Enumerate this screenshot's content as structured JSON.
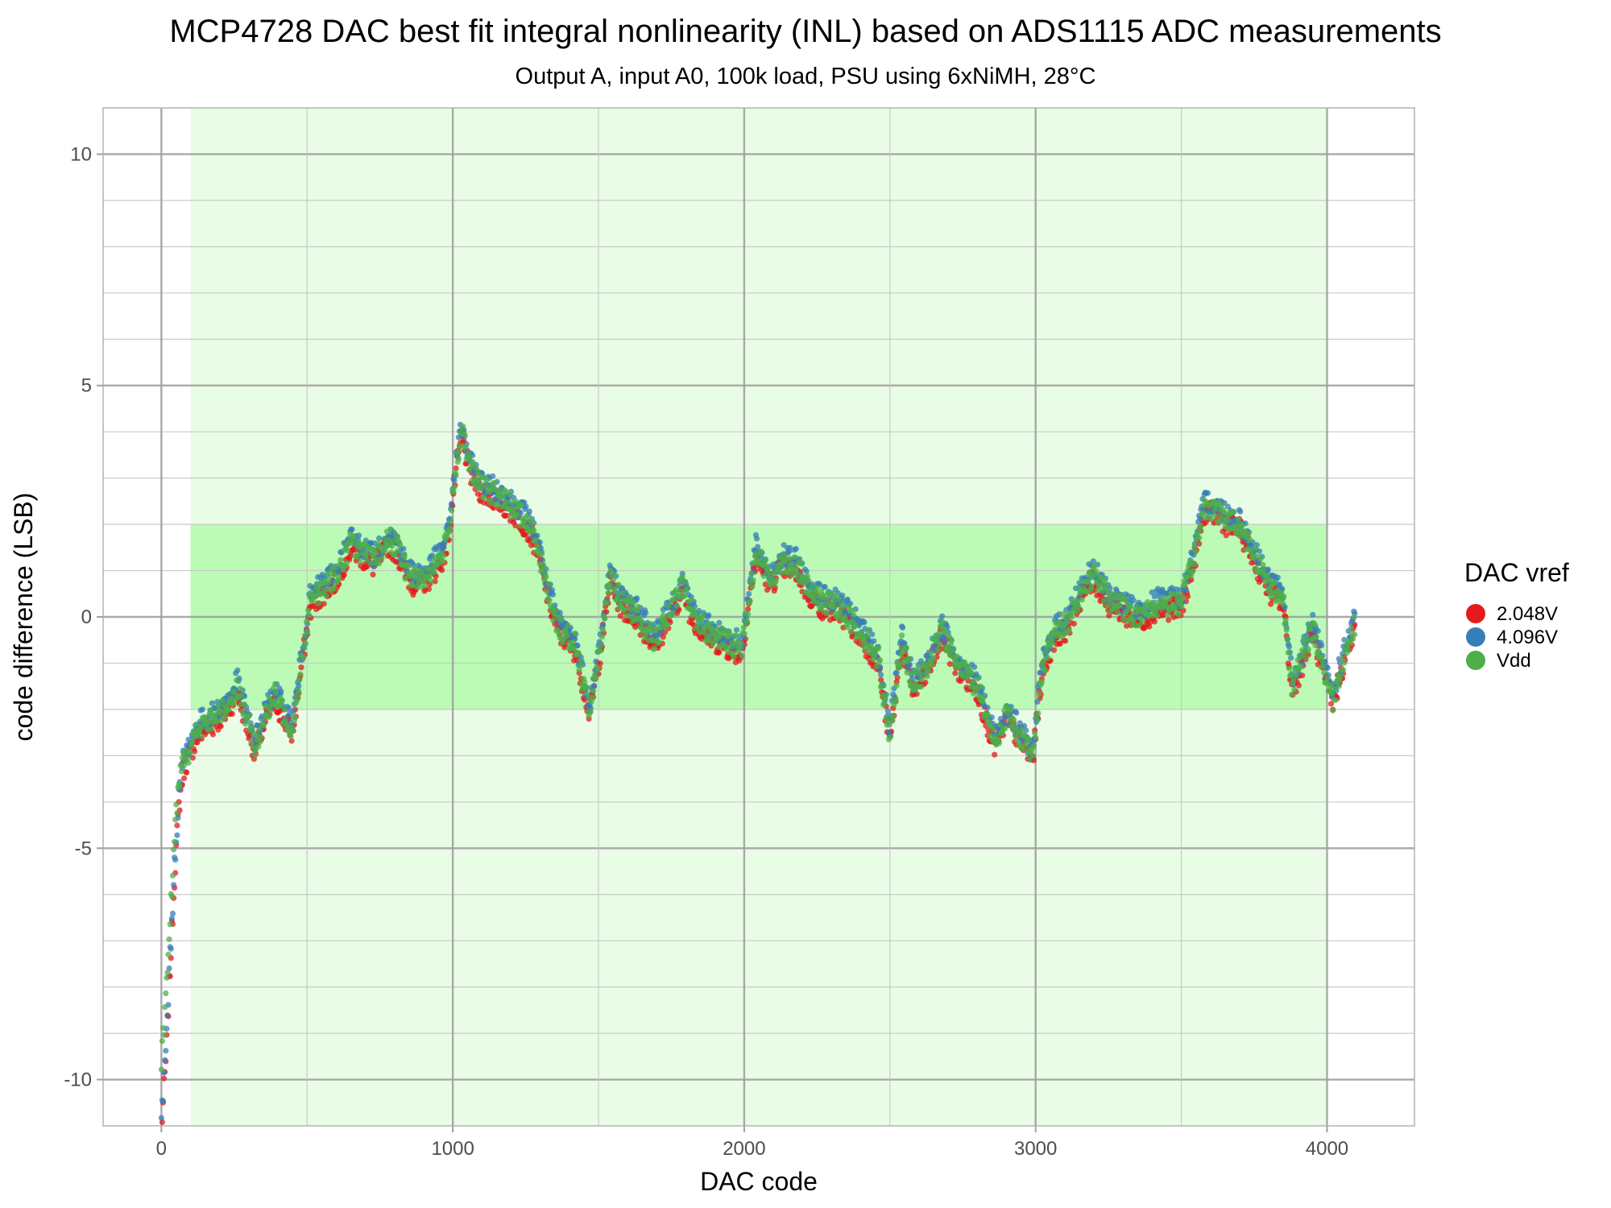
{
  "chart_data": {
    "type": "scatter",
    "title": "MCP4728 DAC best fit integral nonlinearity (INL) based on ADS1115 ADC measurements",
    "subtitle": "Output A, input A0, 100k load, PSU using 6xNiMH, 28°C",
    "xlabel": "DAC code",
    "ylabel": "code difference (LSB)",
    "xlim": [
      -200,
      4300
    ],
    "ylim": [
      -11,
      11
    ],
    "x_ticks": [
      0,
      1000,
      2000,
      3000,
      4000
    ],
    "x_tick_labels": [
      "0",
      "1000",
      "2000",
      "3000",
      "4000"
    ],
    "y_ticks": [
      -10,
      -5,
      0,
      5,
      10
    ],
    "y_tick_labels": [
      "-10",
      "-5",
      "0",
      "5",
      "10"
    ],
    "grid": true,
    "legend": {
      "title": "DAC vref",
      "position": "right",
      "entries": [
        {
          "label": "2.048V",
          "color": "#e41a1c"
        },
        {
          "label": "4.096V",
          "color": "#377eb8"
        },
        {
          "label": "Vdd",
          "color": "#4daf4a"
        }
      ]
    },
    "bands": [
      {
        "x": [
          100,
          4000
        ],
        "y": [
          -11,
          11
        ],
        "color": "#e9fde6"
      },
      {
        "x": [
          100,
          4000
        ],
        "y": [
          -2,
          2
        ],
        "color": "#bbfbb5"
      }
    ],
    "series_shape": [
      [
        0,
        -11.0
      ],
      [
        15,
        -9.5
      ],
      [
        30,
        -7.5
      ],
      [
        45,
        -5.5
      ],
      [
        60,
        -4.0
      ],
      [
        75,
        -3.2
      ],
      [
        100,
        -2.8
      ],
      [
        130,
        -2.4
      ],
      [
        180,
        -2.2
      ],
      [
        230,
        -1.9
      ],
      [
        260,
        -1.5
      ],
      [
        320,
        -2.8
      ],
      [
        360,
        -2.1
      ],
      [
        390,
        -1.7
      ],
      [
        420,
        -2.1
      ],
      [
        450,
        -2.4
      ],
      [
        480,
        -1.0
      ],
      [
        510,
        0.3
      ],
      [
        550,
        0.6
      ],
      [
        600,
        0.9
      ],
      [
        650,
        1.6
      ],
      [
        690,
        1.4
      ],
      [
        730,
        1.2
      ],
      [
        780,
        1.7
      ],
      [
        810,
        1.5
      ],
      [
        840,
        1.0
      ],
      [
        870,
        0.8
      ],
      [
        910,
        0.9
      ],
      [
        950,
        1.2
      ],
      [
        980,
        1.6
      ],
      [
        1010,
        3.2
      ],
      [
        1030,
        4.0
      ],
      [
        1060,
        3.2
      ],
      [
        1100,
        2.8
      ],
      [
        1160,
        2.6
      ],
      [
        1200,
        2.4
      ],
      [
        1250,
        2.1
      ],
      [
        1290,
        1.6
      ],
      [
        1320,
        0.7
      ],
      [
        1360,
        -0.2
      ],
      [
        1420,
        -0.6
      ],
      [
        1470,
        -2.0
      ],
      [
        1510,
        -0.5
      ],
      [
        1540,
        0.9
      ],
      [
        1580,
        0.3
      ],
      [
        1630,
        0.1
      ],
      [
        1690,
        -0.5
      ],
      [
        1740,
        0.0
      ],
      [
        1790,
        0.7
      ],
      [
        1820,
        0.1
      ],
      [
        1870,
        -0.3
      ],
      [
        1930,
        -0.5
      ],
      [
        1990,
        -0.7
      ],
      [
        2040,
        1.4
      ],
      [
        2090,
        0.8
      ],
      [
        2130,
        1.2
      ],
      [
        2180,
        1.1
      ],
      [
        2220,
        0.6
      ],
      [
        2270,
        0.3
      ],
      [
        2330,
        0.2
      ],
      [
        2370,
        -0.1
      ],
      [
        2420,
        -0.5
      ],
      [
        2460,
        -0.9
      ],
      [
        2500,
        -2.6
      ],
      [
        2540,
        -0.5
      ],
      [
        2580,
        -1.5
      ],
      [
        2620,
        -1.2
      ],
      [
        2680,
        -0.3
      ],
      [
        2730,
        -1.0
      ],
      [
        2800,
        -1.5
      ],
      [
        2860,
        -2.7
      ],
      [
        2900,
        -2.1
      ],
      [
        2940,
        -2.5
      ],
      [
        2990,
        -3.0
      ],
      [
        3020,
        -1.2
      ],
      [
        3060,
        -0.4
      ],
      [
        3110,
        -0.1
      ],
      [
        3160,
        0.6
      ],
      [
        3200,
        0.9
      ],
      [
        3250,
        0.4
      ],
      [
        3300,
        0.2
      ],
      [
        3350,
        0.0
      ],
      [
        3400,
        0.2
      ],
      [
        3450,
        0.3
      ],
      [
        3500,
        0.3
      ],
      [
        3540,
        1.2
      ],
      [
        3580,
        2.4
      ],
      [
        3620,
        2.3
      ],
      [
        3660,
        2.1
      ],
      [
        3700,
        2.0
      ],
      [
        3760,
        1.2
      ],
      [
        3810,
        0.6
      ],
      [
        3850,
        0.4
      ],
      [
        3880,
        -1.5
      ],
      [
        3910,
        -1.0
      ],
      [
        3950,
        -0.2
      ],
      [
        3990,
        -1.2
      ],
      [
        4020,
        -1.8
      ],
      [
        4060,
        -0.8
      ],
      [
        4095,
        -0.2
      ]
    ]
  }
}
